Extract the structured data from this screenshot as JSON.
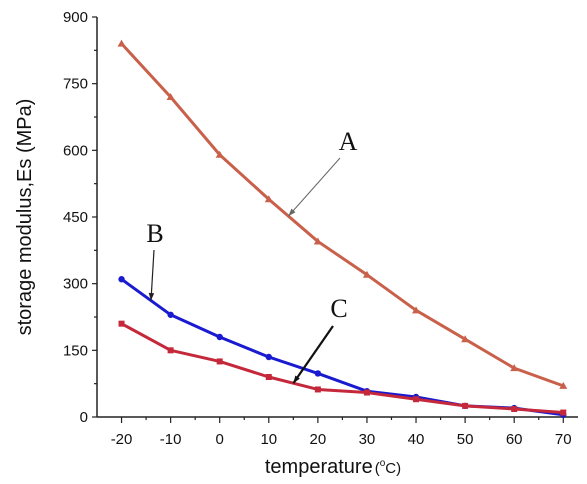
{
  "chart_data": {
    "type": "line",
    "title": "",
    "xlabel": "temperature",
    "xlabel_unit_prefix": "(",
    "xlabel_unit_sup": "o",
    "xlabel_unit_main": "C)",
    "ylabel": "storage modulus,Es (MPa)",
    "x": [
      -20,
      -10,
      0,
      10,
      20,
      30,
      40,
      50,
      60,
      70
    ],
    "xlim": [
      -25,
      73
    ],
    "ylim": [
      0,
      900
    ],
    "x_ticks": [
      -20,
      -10,
      0,
      10,
      20,
      30,
      40,
      50,
      60,
      70
    ],
    "y_ticks": [
      0,
      150,
      300,
      450,
      600,
      750,
      900
    ],
    "grid": false,
    "legend": "none",
    "series": [
      {
        "name": "A",
        "color": "#c8604a",
        "marker": "triangle",
        "values": [
          840,
          720,
          590,
          490,
          395,
          320,
          240,
          175,
          110,
          70
        ]
      },
      {
        "name": "B",
        "color": "#1a1ad0",
        "marker": "circle",
        "values": [
          310,
          230,
          180,
          135,
          98,
          58,
          45,
          25,
          20,
          5
        ]
      },
      {
        "name": "C",
        "color": "#c4283a",
        "marker": "square",
        "values": [
          210,
          150,
          125,
          90,
          62,
          55,
          40,
          25,
          18,
          10
        ]
      }
    ],
    "annotations": [
      {
        "text": "A",
        "series": "A",
        "at_x": 14
      },
      {
        "text": "B",
        "series": "B",
        "at_x": -14
      },
      {
        "text": "C",
        "series": "C",
        "at_x": 15
      }
    ]
  }
}
